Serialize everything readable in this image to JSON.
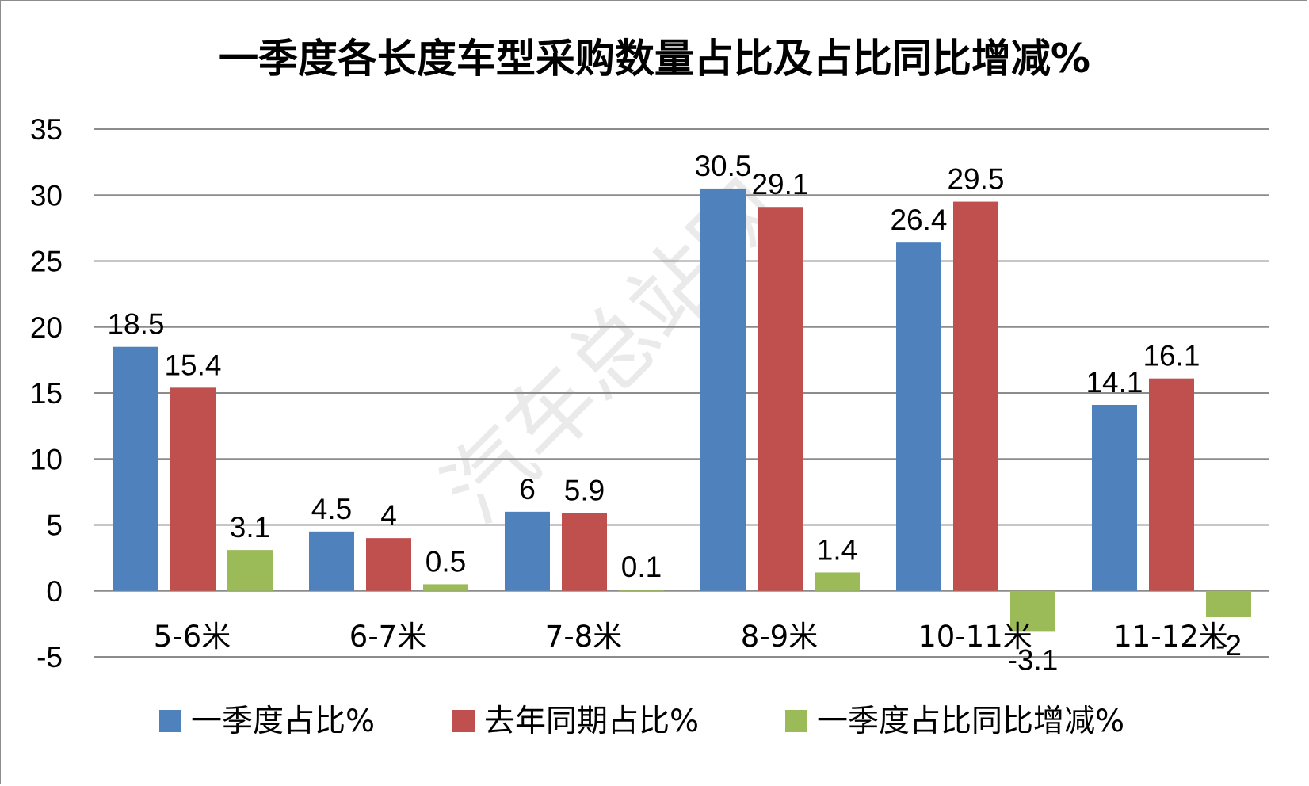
{
  "chart_data": {
    "type": "bar",
    "title": "一季度各长度车型采购数量占比及占比同比增减%",
    "categories": [
      "5-6米",
      "6-7米",
      "7-8米",
      "8-9米",
      "10-11米",
      "11-12米"
    ],
    "series": [
      {
        "name": "一季度占比%",
        "color": "#4f81bd",
        "values": [
          18.5,
          4.5,
          6,
          30.5,
          26.4,
          14.1
        ]
      },
      {
        "name": "去年同期占比%",
        "color": "#c0504d",
        "values": [
          15.4,
          4,
          5.9,
          29.1,
          29.5,
          16.1
        ]
      },
      {
        "name": "一季度占比同比增减%",
        "color": "#9bbb59",
        "values": [
          3.1,
          0.5,
          0.1,
          1.4,
          -3.1,
          -2
        ]
      }
    ],
    "ylim": [
      -5,
      35
    ],
    "yticks": [
      -5,
      0,
      5,
      10,
      15,
      20,
      25,
      30,
      35
    ],
    "grid": true,
    "legend": "bottom"
  },
  "watermark": "汽车总站网"
}
